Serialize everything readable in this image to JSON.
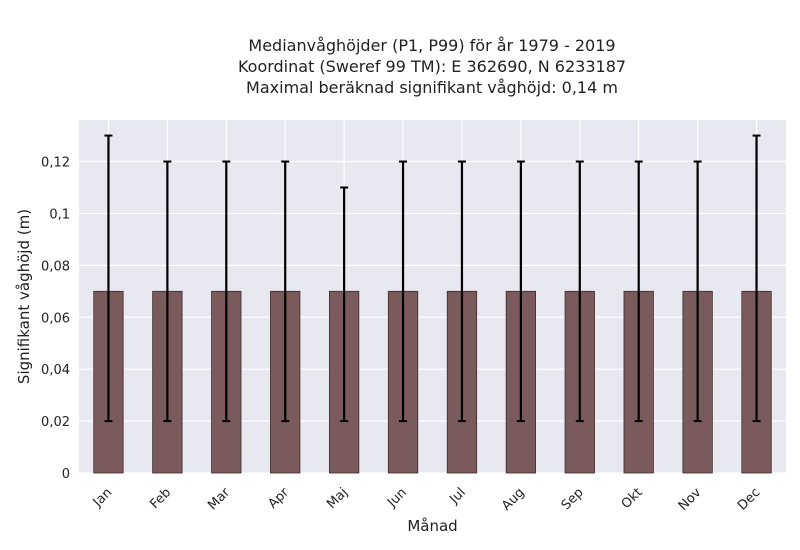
{
  "chart_data": {
    "type": "bar",
    "title_lines": [
      "Medianvåghöjder (P1, P99) för år 1979 - 2019",
      "Koordinat (Sweref 99 TM): E 362690, N 6233187",
      "Maximal beräknad signifikant våghöjd: 0,14 m"
    ],
    "xlabel": "Månad",
    "ylabel": "Signifikant våghöjd (m)",
    "categories": [
      "Jan",
      "Feb",
      "Mar",
      "Apr",
      "Maj",
      "Jun",
      "Jul",
      "Aug",
      "Sep",
      "Okt",
      "Nov",
      "Dec"
    ],
    "values": [
      0.07,
      0.07,
      0.07,
      0.07,
      0.07,
      0.07,
      0.07,
      0.07,
      0.07,
      0.07,
      0.07,
      0.07
    ],
    "err_low": [
      0.02,
      0.02,
      0.02,
      0.02,
      0.02,
      0.02,
      0.02,
      0.02,
      0.02,
      0.02,
      0.02,
      0.02
    ],
    "err_high": [
      0.13,
      0.12,
      0.12,
      0.12,
      0.11,
      0.12,
      0.12,
      0.12,
      0.12,
      0.12,
      0.12,
      0.13
    ],
    "ylim": [
      0,
      0.136
    ],
    "yticks": [
      0,
      0.02,
      0.04,
      0.06,
      0.08,
      0.1,
      0.12
    ],
    "ytick_labels": [
      "0",
      "0,02",
      "0,04",
      "0,06",
      "0,08",
      "0,1",
      "0,12"
    ],
    "grid": true,
    "colors": {
      "plot_background": "#e8e8f0",
      "grid": "#ffffff",
      "bar_fill": "#7a5a5a",
      "bar_edge": "#3d2b2b",
      "error_bar": "#000000"
    }
  }
}
